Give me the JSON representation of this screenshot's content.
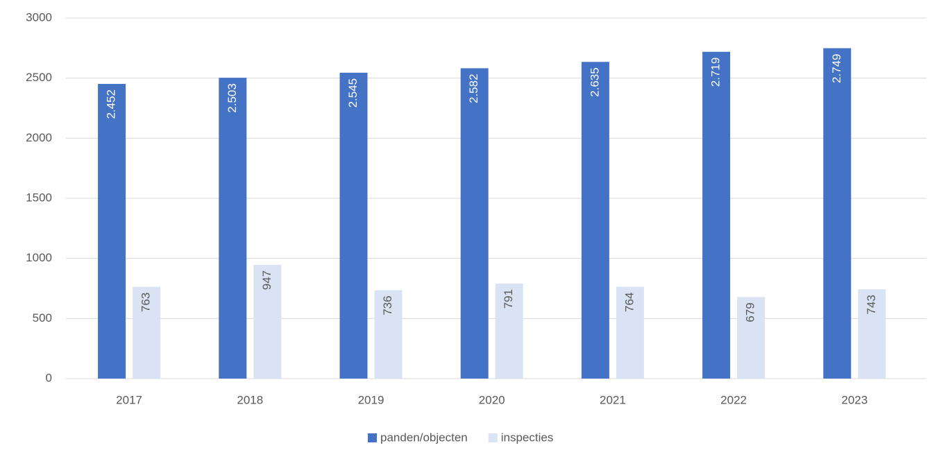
{
  "chart_data": {
    "type": "bar",
    "categories": [
      "2017",
      "2018",
      "2019",
      "2020",
      "2021",
      "2022",
      "2023"
    ],
    "series": [
      {
        "name": "panden/objecten",
        "color": "#4472c4",
        "values": [
          2452,
          2503,
          2545,
          2582,
          2635,
          2719,
          2749
        ],
        "value_labels": [
          "2.452",
          "2.503",
          "2.545",
          "2.582",
          "2.635",
          "2.719",
          "2.749"
        ]
      },
      {
        "name": "inspecties",
        "color": "#dae3f3",
        "values": [
          763,
          947,
          736,
          791,
          764,
          679,
          743
        ]
      }
    ],
    "ylim": [
      0,
      3000
    ],
    "yticks": [
      0,
      500,
      1000,
      1500,
      2000,
      2500,
      3000
    ],
    "grid": true,
    "legend": "bottom"
  }
}
